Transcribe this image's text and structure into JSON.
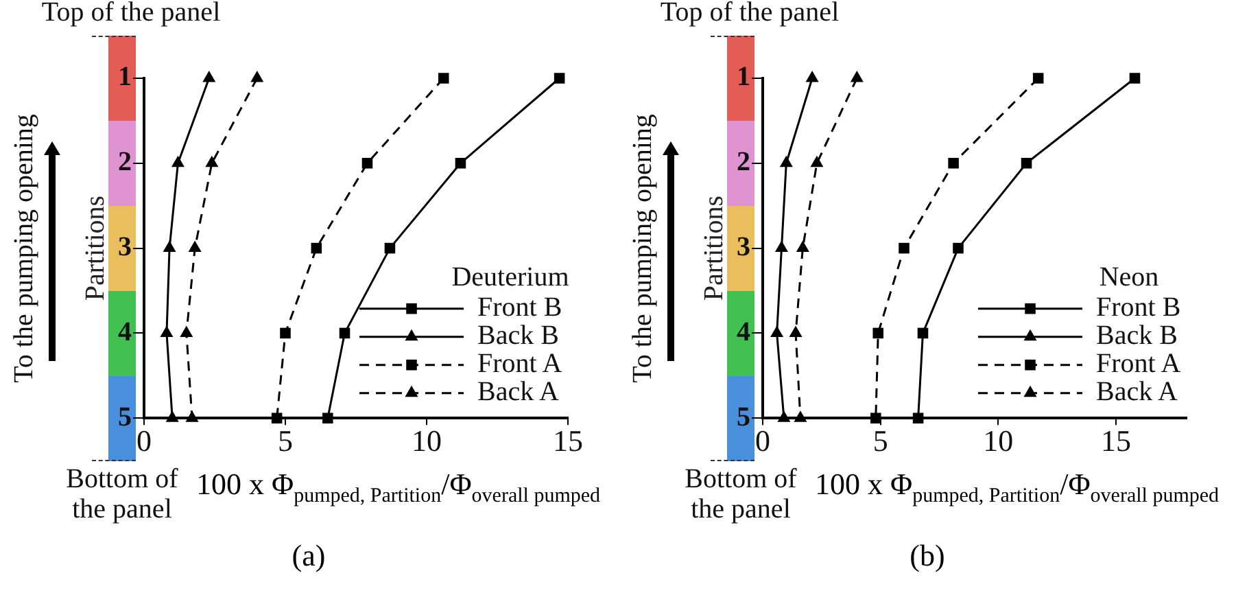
{
  "chart_data": [
    {
      "type": "line",
      "title": "(a)",
      "xlabel": "100 x Φ$_{pumped, Partition}$/Φ$_{overall pumped}$",
      "ylabel": "Partitions",
      "legend_title": "Deuterium",
      "annotations": [
        "Top of the panel",
        "Bottom of the panel",
        "To the pumping opening"
      ],
      "orientation": "horizontal",
      "categories": [
        "1",
        "2",
        "3",
        "4",
        "5"
      ],
      "xlim": [
        0,
        15
      ],
      "xticks": [
        0,
        5,
        10,
        15
      ],
      "grid": false,
      "legend": "bottom right",
      "series": [
        {
          "name": "Front B",
          "color": "#000000",
          "marker": "square",
          "line_style": "solid",
          "values": [
            14.7,
            11.2,
            8.7,
            7.1,
            6.5
          ]
        },
        {
          "name": "Back B",
          "color": "#000000",
          "marker": "triangle",
          "line_style": "solid",
          "values": [
            2.3,
            1.2,
            0.9,
            0.8,
            1.0
          ]
        },
        {
          "name": "Front A",
          "color": "#000000",
          "marker": "square",
          "line_style": "dashed",
          "values": [
            10.6,
            7.9,
            6.1,
            5.0,
            4.7
          ]
        },
        {
          "name": "Back A",
          "color": "#000000",
          "marker": "triangle",
          "line_style": "dashed",
          "values": [
            4.0,
            2.4,
            1.8,
            1.5,
            1.7
          ]
        }
      ]
    },
    {
      "type": "line",
      "title": "(b)",
      "xlabel": "100 x Φ$_{pumped, Partition}$/Φ$_{overall pumped}$",
      "ylabel": "Partitions",
      "legend_title": "Neon",
      "annotations": [
        "Top of the panel",
        "Bottom of the panel",
        "To the pumping opening"
      ],
      "orientation": "horizontal",
      "categories": [
        "1",
        "2",
        "3",
        "4",
        "5"
      ],
      "xlim": [
        0,
        18
      ],
      "xticks": [
        0,
        5,
        10,
        15
      ],
      "grid": false,
      "legend": "bottom right",
      "series": [
        {
          "name": "Front B",
          "color": "#000000",
          "marker": "square",
          "line_style": "solid",
          "values": [
            15.8,
            11.2,
            8.3,
            6.8,
            6.6
          ]
        },
        {
          "name": "Back B",
          "color": "#000000",
          "marker": "triangle",
          "line_style": "solid",
          "values": [
            2.1,
            1.0,
            0.8,
            0.6,
            0.9
          ]
        },
        {
          "name": "Front A",
          "color": "#000000",
          "marker": "square",
          "line_style": "dashed",
          "values": [
            11.7,
            8.1,
            6.0,
            4.9,
            4.8
          ]
        },
        {
          "name": "Back A",
          "color": "#000000",
          "marker": "triangle",
          "line_style": "dashed",
          "values": [
            4.0,
            2.3,
            1.7,
            1.4,
            1.6
          ]
        }
      ]
    }
  ]
}
